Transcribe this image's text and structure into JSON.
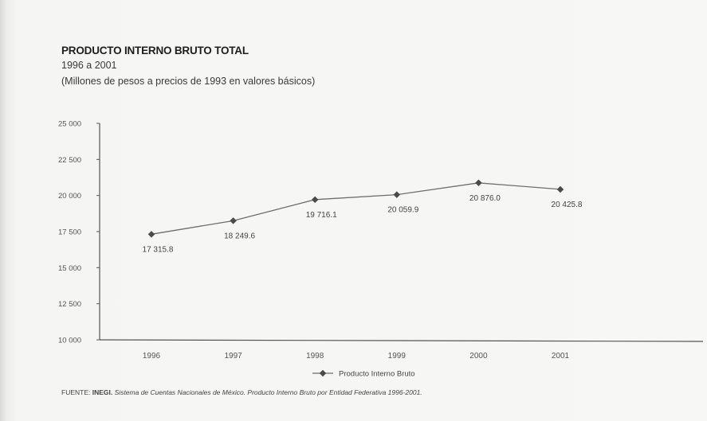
{
  "header": {
    "title": "PRODUCTO INTERNO BRUTO TOTAL",
    "subtitle": "1996 a 2001",
    "note": "(Millones de pesos a precios de 1993 en valores básicos)"
  },
  "source": {
    "lead": "FUENTE:",
    "org": "INEGI.",
    "ref": "Sistema de Cuentas Nacionales de México. Producto Interno Bruto por Entidad Federativa 1996-2001."
  },
  "chart_data": {
    "type": "line",
    "x": [
      "1996",
      "1997",
      "1998",
      "1999",
      "2000",
      "2001"
    ],
    "series": [
      {
        "name": "Producto Interno Bruto",
        "values": [
          17315.8,
          18249.6,
          19716.1,
          20059.9,
          20876.0,
          20425.8
        ],
        "labels": [
          "17 315.8",
          "18 249.6",
          "19 716.1",
          "20 059.9",
          "20 876.0",
          "20 425.8"
        ]
      }
    ],
    "ylim": [
      10000,
      25000
    ],
    "yticks": [
      10000,
      12500,
      15000,
      17500,
      20000,
      22500,
      25000
    ],
    "ytick_labels": [
      "10 000",
      "12 500",
      "15 000",
      "17 500",
      "20 000",
      "22 500",
      "25 000"
    ],
    "grid": false,
    "legend": "bottom-center",
    "colors": {
      "line": "#6d6d6d",
      "marker": "#4a4a4a",
      "axis": "#555555"
    }
  }
}
